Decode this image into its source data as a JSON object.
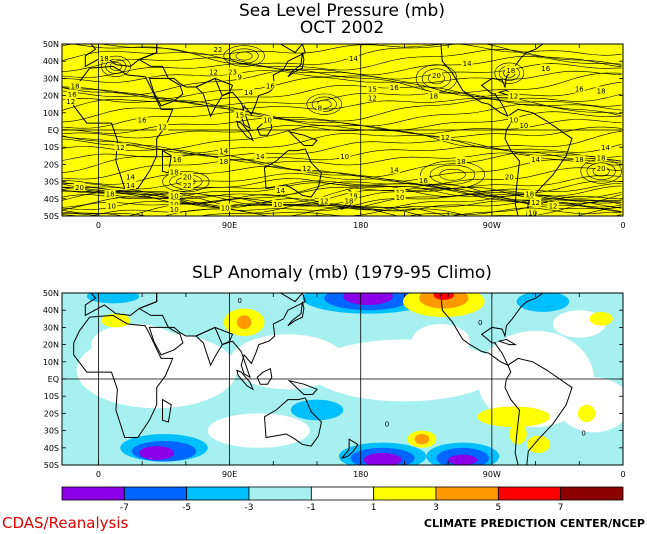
{
  "chart_data": [
    {
      "type": "heatmap",
      "title": "Sea Level Pressure (mb)",
      "subtitle": "OCT 2002",
      "x_ticks": [
        "0",
        "90E",
        "180",
        "90W",
        "0"
      ],
      "y_ticks": [
        "50N",
        "40N",
        "30N",
        "20N",
        "10N",
        "EQ",
        "10S",
        "20S",
        "30S",
        "40S",
        "50S"
      ],
      "xlim": [
        0,
        360
      ],
      "ylim": [
        -50,
        50
      ],
      "grid": true,
      "fill_color": "#ffff00",
      "contour_labels": [
        {
          "text": "18",
          "lon": 4,
          "lat": 42
        },
        {
          "text": "22",
          "lon": 82,
          "lat": 47
        },
        {
          "text": "12",
          "lon": 79,
          "lat": 34
        },
        {
          "text": "23",
          "lon": 92,
          "lat": 34
        },
        {
          "text": "9",
          "lon": 97,
          "lat": 31
        },
        {
          "text": "16",
          "lon": 118,
          "lat": 26
        },
        {
          "text": "14",
          "lon": 103,
          "lat": 22
        },
        {
          "text": "14",
          "lon": 175,
          "lat": 42
        },
        {
          "text": "20",
          "lon": 232,
          "lat": 32
        },
        {
          "text": "14",
          "lon": 253,
          "lat": 39
        },
        {
          "text": "16",
          "lon": 307,
          "lat": 36
        },
        {
          "text": "18",
          "lon": 283,
          "lat": 35
        },
        {
          "text": "16",
          "lon": 203,
          "lat": 25
        },
        {
          "text": "15",
          "lon": 188,
          "lat": 24
        },
        {
          "text": "12",
          "lon": 188,
          "lat": 19
        },
        {
          "text": "18",
          "lon": 230,
          "lat": 20
        },
        {
          "text": "12",
          "lon": 285,
          "lat": 20
        },
        {
          "text": "16",
          "lon": 330,
          "lat": 24
        },
        {
          "text": "18",
          "lon": 345,
          "lat": 23
        },
        {
          "text": "18",
          "lon": -16,
          "lat": 26
        },
        {
          "text": "16",
          "lon": -18,
          "lat": 21
        },
        {
          "text": "12",
          "lon": -19,
          "lat": 17
        },
        {
          "text": "16",
          "lon": 30,
          "lat": 6
        },
        {
          "text": "8",
          "lon": 152,
          "lat": 13
        },
        {
          "text": "15",
          "lon": 97,
          "lat": 9
        },
        {
          "text": "10",
          "lon": 116,
          "lat": 6
        },
        {
          "text": "10",
          "lon": 285,
          "lat": 6
        },
        {
          "text": "10",
          "lon": 292,
          "lat": 3
        },
        {
          "text": "12",
          "lon": 44,
          "lat": 2
        },
        {
          "text": "12",
          "lon": 15,
          "lat": -10
        },
        {
          "text": "12",
          "lon": 238,
          "lat": -4
        },
        {
          "text": "14",
          "lon": 86,
          "lat": -12
        },
        {
          "text": "18",
          "lon": 86,
          "lat": -18
        },
        {
          "text": "16",
          "lon": 54,
          "lat": -17
        },
        {
          "text": "14",
          "lon": 111,
          "lat": -15
        },
        {
          "text": "10",
          "lon": 169,
          "lat": -15
        },
        {
          "text": "12",
          "lon": 143,
          "lat": -22
        },
        {
          "text": "14",
          "lon": 203,
          "lat": -23
        },
        {
          "text": "18",
          "lon": 249,
          "lat": -18
        },
        {
          "text": "16",
          "lon": 223,
          "lat": -29
        },
        {
          "text": "14",
          "lon": 300,
          "lat": -17
        },
        {
          "text": "14",
          "lon": 348,
          "lat": -10
        },
        {
          "text": "18",
          "lon": 345,
          "lat": -16
        },
        {
          "text": "18",
          "lon": 330,
          "lat": -17
        },
        {
          "text": "20",
          "lon": 345,
          "lat": -22
        },
        {
          "text": "20",
          "lon": 282,
          "lat": -27
        },
        {
          "text": "18",
          "lon": 52,
          "lat": -24
        },
        {
          "text": "20",
          "lon": 61,
          "lat": -27
        },
        {
          "text": "14",
          "lon": 22,
          "lat": -27
        },
        {
          "text": "14",
          "lon": 22,
          "lat": -32
        },
        {
          "text": "22",
          "lon": 61,
          "lat": -32
        },
        {
          "text": "20",
          "lon": -13,
          "lat": -33
        },
        {
          "text": "18",
          "lon": 8,
          "lat": -37
        },
        {
          "text": "14",
          "lon": 125,
          "lat": -35
        },
        {
          "text": "18",
          "lon": 175,
          "lat": -38
        },
        {
          "text": "18",
          "lon": 172,
          "lat": -41
        },
        {
          "text": "12",
          "lon": 207,
          "lat": -36
        },
        {
          "text": "10",
          "lon": 207,
          "lat": -39
        },
        {
          "text": "18",
          "lon": 296,
          "lat": -37
        },
        {
          "text": "12",
          "lon": 300,
          "lat": -42
        },
        {
          "text": "10",
          "lon": 298,
          "lat": -48
        },
        {
          "text": "12",
          "lon": 312,
          "lat": -44
        },
        {
          "text": "10",
          "lon": 9,
          "lat": -44
        },
        {
          "text": "10",
          "lon": 52,
          "lat": -38
        },
        {
          "text": "10",
          "lon": 52,
          "lat": -43
        },
        {
          "text": "10",
          "lon": 52,
          "lat": -46
        },
        {
          "text": "10",
          "lon": 87,
          "lat": -45
        },
        {
          "text": "10",
          "lon": 123,
          "lat": -43
        },
        {
          "text": "12",
          "lon": 155,
          "lat": -41
        }
      ]
    },
    {
      "type": "heatmap",
      "title": "SLP Anomaly (mb) (1979-95 Climo)",
      "x_ticks": [
        "0",
        "90E",
        "180",
        "90W",
        "0"
      ],
      "y_ticks": [
        "50N",
        "40N",
        "30N",
        "20N",
        "10N",
        "EQ",
        "10S",
        "20S",
        "30S",
        "40S",
        "50S"
      ],
      "xlim": [
        0,
        360
      ],
      "ylim": [
        -50,
        50
      ],
      "grid": true,
      "colorbar": {
        "boundaries": [
          "-7",
          "-5",
          "-3",
          "-1",
          "1",
          "3",
          "5",
          "7"
        ],
        "colors": [
          "#8b00e6",
          "#0066ff",
          "#00bfff",
          "#a6f0f0",
          "#ffffff",
          "#ffff00",
          "#ff9900",
          "#ff0000",
          "#8b0000"
        ]
      },
      "contour_labels": [
        {
          "text": "0",
          "lon": 97,
          "lat": 46
        },
        {
          "text": "0",
          "lon": 262,
          "lat": 33
        },
        {
          "text": "0",
          "lon": 198,
          "lat": -26
        },
        {
          "text": "0",
          "lon": 333,
          "lat": -31
        }
      ],
      "anomaly_regions": [
        {
          "level": 1,
          "color": "#ffff00",
          "lon": 100,
          "lat": 33,
          "dlon": 14,
          "dlat": 8
        },
        {
          "level": 3,
          "color": "#ff9900",
          "lon": 100,
          "lat": 33,
          "dlon": 5,
          "dlat": 4
        },
        {
          "level": -3,
          "color": "#00bfff",
          "lon": 185,
          "lat": 47,
          "dlon": 45,
          "dlat": 9
        },
        {
          "level": -5,
          "color": "#0066ff",
          "lon": 185,
          "lat": 47,
          "dlon": 30,
          "dlat": 7
        },
        {
          "level": -7,
          "color": "#8b00e6",
          "lon": 185,
          "lat": 48,
          "dlon": 17,
          "dlat": 5
        },
        {
          "level": 1,
          "color": "#ffff00",
          "lon": 237,
          "lat": 45,
          "dlon": 28,
          "dlat": 9
        },
        {
          "level": 3,
          "color": "#ff9900",
          "lon": 237,
          "lat": 47,
          "dlon": 17,
          "dlat": 6
        },
        {
          "level": 5,
          "color": "#ff0000",
          "lon": 237,
          "lat": 49,
          "dlon": 7,
          "dlat": 3
        },
        {
          "level": -3,
          "color": "#00bfff",
          "lon": 305,
          "lat": 45,
          "dlon": 18,
          "dlat": 6
        },
        {
          "level": 1,
          "color": "#ffff00",
          "lon": 345,
          "lat": 35,
          "dlon": 8,
          "dlat": 4
        },
        {
          "level": 1,
          "color": "#ffff00",
          "lon": 12,
          "lat": 34,
          "dlon": 10,
          "dlat": 4
        },
        {
          "level": -3,
          "color": "#00bfff",
          "lon": 10,
          "lat": 48,
          "dlon": 18,
          "dlat": 4
        },
        {
          "level": -3,
          "color": "#00bfff",
          "lon": 150,
          "lat": -18,
          "dlon": 18,
          "dlat": 6
        },
        {
          "level": 1,
          "color": "#ffff00",
          "lon": 285,
          "lat": -22,
          "dlon": 25,
          "dlat": 6
        },
        {
          "level": 1,
          "color": "#ffff00",
          "lon": 335,
          "lat": -20,
          "dlon": 6,
          "dlat": 5
        },
        {
          "level": 1,
          "color": "#ffff00",
          "lon": 288,
          "lat": -32,
          "dlon": 6,
          "dlat": 6
        },
        {
          "level": -3,
          "color": "#00bfff",
          "lon": 45,
          "lat": -40,
          "dlon": 30,
          "dlat": 8
        },
        {
          "level": -5,
          "color": "#0066ff",
          "lon": 45,
          "lat": -42,
          "dlon": 22,
          "dlat": 6
        },
        {
          "level": -7,
          "color": "#8b00e6",
          "lon": 40,
          "lat": -43,
          "dlon": 12,
          "dlat": 4
        },
        {
          "level": -3,
          "color": "#00bfff",
          "lon": 195,
          "lat": -45,
          "dlon": 30,
          "dlat": 8
        },
        {
          "level": -5,
          "color": "#0066ff",
          "lon": 195,
          "lat": -46,
          "dlon": 22,
          "dlat": 6
        },
        {
          "level": -7,
          "color": "#8b00e6",
          "lon": 195,
          "lat": -47,
          "dlon": 13,
          "dlat": 4
        },
        {
          "level": 1,
          "color": "#ffff00",
          "lon": 222,
          "lat": -35,
          "dlon": 10,
          "dlat": 5
        },
        {
          "level": 3,
          "color": "#ff9900",
          "lon": 222,
          "lat": -35,
          "dlon": 5,
          "dlat": 3
        },
        {
          "level": -3,
          "color": "#00bfff",
          "lon": 250,
          "lat": -45,
          "dlon": 25,
          "dlat": 8
        },
        {
          "level": -5,
          "color": "#0066ff",
          "lon": 250,
          "lat": -46,
          "dlon": 18,
          "dlat": 6
        },
        {
          "level": -7,
          "color": "#8b00e6",
          "lon": 250,
          "lat": -47,
          "dlon": 10,
          "dlat": 3
        },
        {
          "level": 1,
          "color": "#ffff00",
          "lon": 302,
          "lat": -38,
          "dlon": 8,
          "dlat": 5
        }
      ]
    }
  ],
  "footer": {
    "left": "CDAS/Reanalysis",
    "right": "CLIMATE PREDICTION CENTER/NCEP"
  }
}
